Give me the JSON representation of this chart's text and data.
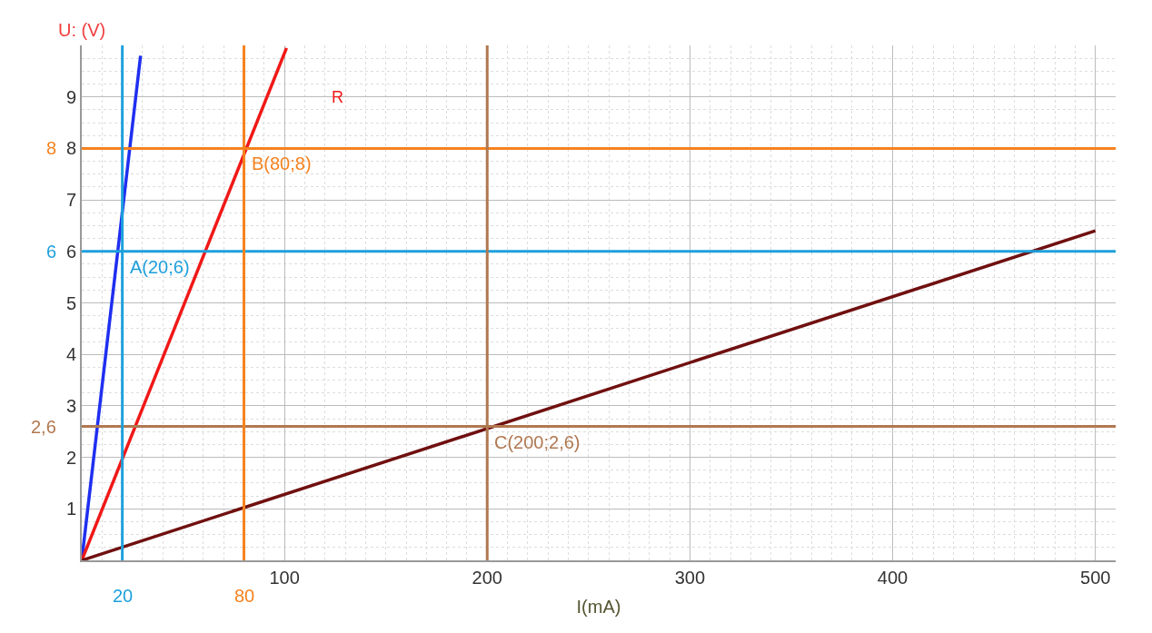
{
  "chart_data": {
    "type": "line",
    "xlabel": "I(mA)",
    "ylabel": "U: (V)",
    "xlim": [
      0,
      510
    ],
    "ylim": [
      0,
      10
    ],
    "xticks": [
      100,
      200,
      300,
      400,
      500
    ],
    "yticks": [
      1,
      2,
      3,
      4,
      5,
      6,
      7,
      8,
      9
    ],
    "grid": true,
    "line_style": "solid",
    "series": [
      {
        "color": "#1f2ff0",
        "x": [
          0,
          29
        ],
        "values": [
          0,
          9.8
        ]
      },
      {
        "color": "#f01818",
        "x": [
          0,
          101
        ],
        "values": [
          0,
          9.95
        ]
      },
      {
        "color": "#701010",
        "x": [
          0,
          500
        ],
        "values": [
          0,
          6.4
        ]
      }
    ],
    "ref_lines": [
      {
        "axis": "y",
        "value": 8,
        "label": "8",
        "color": "#f5821f"
      },
      {
        "axis": "y",
        "value": 6,
        "label": "6",
        "color": "#1ea0dc"
      },
      {
        "axis": "y",
        "value": 2.6,
        "label": "2,6",
        "color": "#b07850"
      },
      {
        "axis": "x",
        "value": 20,
        "label": "20",
        "color": "#1ea0dc"
      },
      {
        "axis": "x",
        "value": 80,
        "label": "80",
        "color": "#f5821f"
      },
      {
        "axis": "x",
        "value": 200,
        "label": null,
        "color": "#b07850"
      }
    ],
    "annotations": [
      {
        "text": "A(20;6)",
        "x": 20,
        "y": 6
      },
      {
        "text": "B(80;8)",
        "x": 80,
        "y": 8
      },
      {
        "text": "C(200;2,6)",
        "x": 200,
        "y": 2.6
      },
      "R"
    ]
  }
}
